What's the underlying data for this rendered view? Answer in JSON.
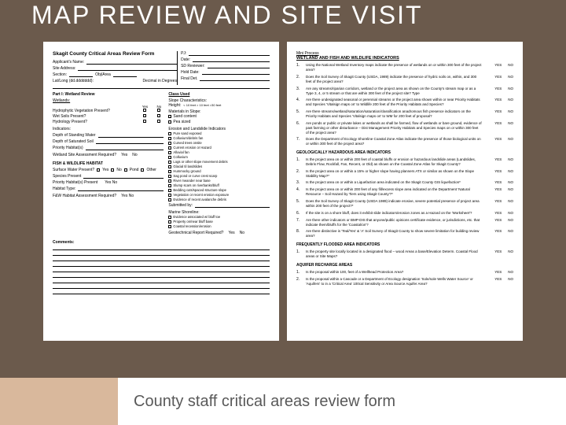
{
  "slide": {
    "title": "MAP REVIEW AND SITE VISIT",
    "caption": "County staff critical areas review form",
    "background_color": "#6b5a4c",
    "accent_color": "#d9b89c",
    "caption_text_color": "#595959"
  },
  "form_page1": {
    "title": "Skagit County Critical Areas Review Form",
    "header_left": {
      "applicant": "Applicant's Name:",
      "site_address": "Site Address:",
      "section": "Section:",
      "objarea": "Obj/Area",
      "lat_long": "Lat/Long (dd.ddddddd):",
      "decimal": "Decimal in Degrees"
    },
    "header_right": {
      "pj": "PJ:",
      "date": "Date:",
      "sd_review": "SD Reviewer:",
      "hold_date": "Hold Date:",
      "final_det": "Final Det."
    },
    "wetlands": {
      "title": "Part I: Wetland Review",
      "subtitle": "Wetlands:",
      "cols": [
        "Yes",
        "No"
      ],
      "rows": [
        "Hydrophytic Vegetation Present?",
        "Wet Soils Present?",
        "Hydrology Present?"
      ],
      "indicators": "Indicators:",
      "depth_standing": "Depth of Standing Water",
      "depth_saturated": "Depth of Saturated Soil",
      "priority_habitat": "Priority Habitat(s)",
      "wetland_site_req": "Wetland Site Assessment Required?",
      "yn": [
        "Yes",
        "No"
      ]
    },
    "fish_wildlife": {
      "title": "FISH & WILDLIFE HABITAT",
      "surface_water": "Surface Water Present?",
      "species_present": "Species Present",
      "sw_options": [
        "Yes",
        "No",
        "Pond",
        "Other"
      ],
      "priority_habitat": "Priority Habitat(s) Present",
      "ph_yn": "Yes   No",
      "habitat_type": "Habitat Type:",
      "fwh_req": "F&W Habitat Assessment Required?",
      "fwh_yn": "Yes  No"
    },
    "comments_label": "Comments:",
    "class_used": {
      "title": "Class Used",
      "slope_char": "Slope Characteristics:",
      "height": "Height:",
      "height_opts": "< 10 feet  > 10 feet  >30 feet",
      "mat_slope": "Materials in Slope:",
      "mat_items": [
        "Sand content",
        "Pea sized"
      ],
      "erosion_title": "Erosion and Landslide Indicators",
      "erosion_items": [
        "Pure sand exposed",
        "Colluvium/debris fan",
        "Curved trees onsite",
        "Current erosion or Hazard",
        "Alluvial fan",
        "Colluvium",
        "Logs or other slope movement debris",
        "Glacial til landslides",
        "Hummocky ground",
        "Sag pond or curve crest scarp",
        "River meander near base",
        "Slump scars on riverbanks/bluff",
        "Bedding cuts/spaced structure slope",
        "Vegetation or recent erosion exposure",
        "Evidence of recent avalanche debris"
      ],
      "submitted": "Submitted by:",
      "marine_sh": "Marine Shoreline:",
      "marine_items": [
        "Evidence associated w/ bluff toe",
        "Property on/near bluff base",
        "Coastal recession/erosion"
      ],
      "geotech_req": "Geotechnical Report Required?",
      "yn": [
        "Yes",
        "No"
      ]
    }
  },
  "form_page2": {
    "mini_process": "Mini Process",
    "section1_title": "WETLAND AND FISH AND WILDLIFE INDICATORS",
    "questions1": [
      {
        "n": "1.",
        "t": "Using the National Wetland Inventory maps indicate the presence of wetlands on or within 300 feet of the project area?"
      },
      {
        "n": "2.",
        "t": "Does the Soil Survey of Skagit County (USDA, 1989) indicate the presence of hydric soils on, within, and 300 feet of the project area?"
      },
      {
        "n": "3.",
        "t": "Are any streams/riparian corridors, wetland or the project area as shown on the County's stream map or as a Type 3, 4, or 5 stream or that are within 300 feet of the project site? Type"
      },
      {
        "n": "4.",
        "t": "Are there undesignated seasonal or perennial streams or the project area shown within or near Priority Habitats and Species 'Vitalsign maps on' to Wildlife 200 feet of the Priority Habitats and Species?"
      },
      {
        "n": "5.",
        "t": "Are there streams/wetland/saturation/saturation/classification anadromous fish presence indicators on the Priority Habitats and Species 'Vitalsign maps on' to WM for 200 feet of proposal?"
      },
      {
        "n": "6.",
        "t": "Are ponds or public or private lakes or wetlands as shall be farmed, flow of wetlands or bare ground, evidence of past farming or other disturbance – Dist Management Priority Habitats and Species maps on or within 300 feet of the project area?"
      },
      {
        "n": "7.",
        "t": "Does the Department of Ecology Shoreline Coastal Zone Atlas indicate the presence of those biological units on or within 300 feet of the project area?"
      }
    ],
    "section2_title": "GEOLOGICALLY HAZARDOUS AREA INDICATORS",
    "questions2": [
      {
        "n": "1.",
        "t": "Is the project area on or within 200 feet of coastal bluffs or erosion or hazardous landslide areas (Landslides, Debris Flow, Rockfall, Fan, Recent, or Old) as shown on the Coastal Zone Atlas for Skagit County?"
      },
      {
        "n": "2.",
        "t": "Is the project area on or within a 15% or higher slope having planners ATX or similar as shown on the Slope Stability Map?*"
      },
      {
        "n": "3.",
        "t": "Is the project area on or within a Liquefaction area indicated on the Skagit County GIS liquefaction*"
      },
      {
        "n": "4.",
        "t": "Is the project area on or within 200 feet of any fill/excess slope area indicated on the Department 'Natural Resource – Soil Hazard by Tiers using Skagit County'?*"
      },
      {
        "n": "5.",
        "t": "Does the Soil Survey of Skagit County (USDA 1989) indicate erosive, severe potential presence of project area within 200 feet of the project?*"
      },
      {
        "n": "6.",
        "t": "If the site is on a shore bluff, does it exhibit slide indicators/erosion zones as a Hazard on the 'Worksheet'?"
      },
      {
        "n": "7.",
        "t": "Are there other indicators or BMP-DIS that anyone/public opinions certificate evidence, or jurisdictions, etc. that indicate them/bluffs for the 'Coastal/on'?"
      },
      {
        "n": "8.",
        "t": "Are there distinctive is 'Teal/Yes' & 'A' Soil Survey of Skagit County to show severe limitation for building review area?"
      }
    ],
    "section3_title": "FREQUENTLY FLOODED AREA INDICATORS",
    "questions3": [
      {
        "n": "1.",
        "t": "Is the property site locally located in a designated flood – wood Areas a base/Elevation Determ. Coastal Flood areas or Site Maps?"
      }
    ],
    "section4_title": "AQUIFER RECHARGE AREAS",
    "questions4": [
      {
        "n": "1.",
        "t": "Is the proposal within 100, feet of a Wellhead Protection Area?"
      },
      {
        "n": "2.",
        "t": "Is the proposal within a Cascade or a Department of Ecology designation 'Sole/sole Wells Water Source' or 'Aquifers' to in a 'Critical Area' 100cal Sensitivity or Area Source Aquifer Area?"
      }
    ],
    "yes": "YES",
    "no": "NO"
  }
}
